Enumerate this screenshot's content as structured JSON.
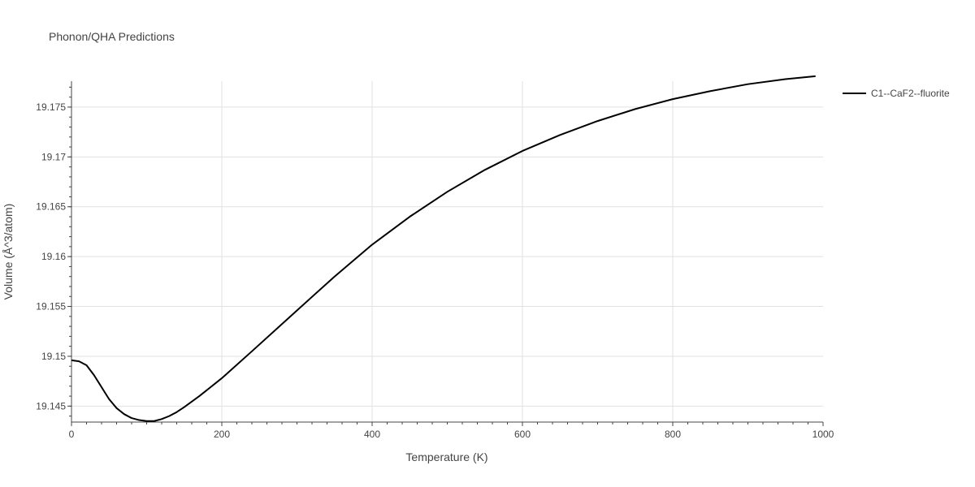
{
  "chart_data": {
    "type": "line",
    "title": "Phonon/QHA Predictions",
    "xlabel": "Temperature (K)",
    "ylabel": "Volume (Å^3/atom)",
    "xlim": [
      0,
      1000
    ],
    "ylim": [
      19.1434,
      19.1776
    ],
    "x_ticks": [
      0,
      200,
      400,
      600,
      800,
      1000
    ],
    "x_tick_labels": [
      "0",
      "200",
      "400",
      "600",
      "800",
      "1000"
    ],
    "y_ticks": [
      19.145,
      19.15,
      19.155,
      19.16,
      19.165,
      19.17,
      19.175
    ],
    "y_tick_labels": [
      "19.145",
      "19.15",
      "19.155",
      "19.16",
      "19.165",
      "19.17",
      "19.175"
    ],
    "grid": true,
    "legend_position": "top-right, outside plot",
    "series": [
      {
        "name": "C1--CaF2--fluorite",
        "color": "#000000",
        "x": [
          0,
          10,
          20,
          30,
          40,
          50,
          60,
          70,
          80,
          90,
          100,
          110,
          120,
          130,
          140,
          150,
          170,
          200,
          240,
          300,
          350,
          400,
          450,
          500,
          550,
          600,
          650,
          700,
          750,
          800,
          850,
          900,
          950,
          990
        ],
        "y": [
          19.1496,
          19.1495,
          19.1491,
          19.1481,
          19.1469,
          19.1457,
          19.1448,
          19.1442,
          19.1438,
          19.1436,
          19.1435,
          19.1435,
          19.1437,
          19.144,
          19.1444,
          19.1449,
          19.146,
          19.1478,
          19.1505,
          19.1546,
          19.158,
          19.1612,
          19.164,
          19.1665,
          19.1687,
          19.1706,
          19.1722,
          19.1736,
          19.1748,
          19.1758,
          19.1766,
          19.1773,
          19.1778,
          19.1781
        ]
      }
    ]
  }
}
